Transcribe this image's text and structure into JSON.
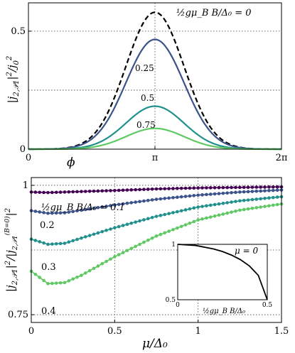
{
  "chart_data": [
    {
      "type": "line",
      "xlabel": "ϕ",
      "ylabel": "|j_{2,𝒫1}|²/j_0²",
      "xlim": [
        0,
        6.2832
      ],
      "ylim": [
        0,
        0.62
      ],
      "x_ticks": [
        {
          "v": 0,
          "label": "0"
        },
        {
          "v": 3.1416,
          "label": "π"
        },
        {
          "v": 6.2832,
          "label": "2π"
        }
      ],
      "y_ticks": [
        {
          "v": 0,
          "label": "0"
        },
        {
          "v": 0.5,
          "label": "0.5"
        }
      ],
      "grid": true,
      "series": [
        {
          "name": "½gμ_B B/Δ₀ = 0",
          "param": 0,
          "peak": 0.58,
          "color": "#000000",
          "dashed": true
        },
        {
          "name": "0.25",
          "param": 0.25,
          "peak": 0.465,
          "color": "#3b528b",
          "dashed": false
        },
        {
          "name": "0.5",
          "param": 0.5,
          "peak": 0.182,
          "color": "#21908d",
          "dashed": false
        },
        {
          "name": "0.75",
          "param": 0.75,
          "peak": 0.088,
          "color": "#5ec962",
          "dashed": false
        }
      ],
      "annotations": [
        "½gμ_B B/Δ₀ = 0",
        "0.25",
        "0.5",
        "0.75"
      ]
    },
    {
      "type": "line",
      "xlabel": "μ/Δ₀",
      "ylabel": "|j_{2,𝒫1}|²/|j_{2,𝒫1}^{(B=0)}|²",
      "xlim": [
        0,
        1.5
      ],
      "ylim": [
        0.735,
        1.015
      ],
      "x_ticks": [
        {
          "v": 0,
          "label": "0"
        },
        {
          "v": 0.5,
          "label": "0.5"
        },
        {
          "v": 1,
          "label": "1"
        },
        {
          "v": 1.5,
          "label": "1.5"
        }
      ],
      "y_ticks": [
        {
          "v": 0.75,
          "label": "0.75"
        },
        {
          "v": 1,
          "label": "1"
        }
      ],
      "grid": true,
      "series": [
        {
          "name": "½gμ_B B/Δ₀ = 0.1",
          "color": "#440154",
          "x": [
            0,
            0.1,
            0.2,
            0.3,
            0.5,
            0.75,
            1.0,
            1.25,
            1.5
          ],
          "y": [
            0.987,
            0.986,
            0.987,
            0.988,
            0.99,
            0.993,
            0.995,
            0.996,
            0.997
          ]
        },
        {
          "name": "0.2",
          "color": "#3b528b",
          "x": [
            0,
            0.1,
            0.2,
            0.3,
            0.5,
            0.75,
            1.0,
            1.25,
            1.5
          ],
          "y": [
            0.951,
            0.946,
            0.947,
            0.952,
            0.962,
            0.973,
            0.981,
            0.987,
            0.991
          ]
        },
        {
          "name": "0.3",
          "color": "#21908d",
          "x": [
            0,
            0.1,
            0.2,
            0.3,
            0.5,
            0.75,
            1.0,
            1.25,
            1.5
          ],
          "y": [
            0.896,
            0.886,
            0.888,
            0.898,
            0.918,
            0.94,
            0.958,
            0.97,
            0.978
          ]
        },
        {
          "name": "0.4",
          "color": "#5ec962",
          "x": [
            0,
            0.1,
            0.2,
            0.3,
            0.5,
            0.75,
            1.0,
            1.25,
            1.5
          ],
          "y": [
            0.834,
            0.81,
            0.812,
            0.826,
            0.862,
            0.902,
            0.933,
            0.952,
            0.964
          ]
        }
      ],
      "annotations": [
        "½gμ_B B/Δ₀ = 0.1",
        "0.2",
        "0.3",
        "0.4"
      ]
    },
    {
      "type": "line",
      "inset": true,
      "xlabel": "½gμ_B B/Δ₀",
      "xlim": [
        0,
        0.5
      ],
      "ylim": [
        0.5,
        1
      ],
      "x_ticks": [
        {
          "v": 0,
          "label": "0"
        },
        {
          "v": 0.5,
          "label": "0.5"
        }
      ],
      "y_ticks": [
        {
          "v": 0.5,
          "label": "0.5"
        },
        {
          "v": 1,
          "label": "1"
        }
      ],
      "series": [
        {
          "name": "μ = 0",
          "color": "#000000",
          "x": [
            0,
            0.1,
            0.2,
            0.25,
            0.3,
            0.35,
            0.4,
            0.45,
            0.5
          ],
          "y": [
            1.0,
            0.99,
            0.958,
            0.935,
            0.903,
            0.862,
            0.805,
            0.72,
            0.5
          ]
        }
      ],
      "annotations": [
        "μ = 0"
      ]
    }
  ]
}
